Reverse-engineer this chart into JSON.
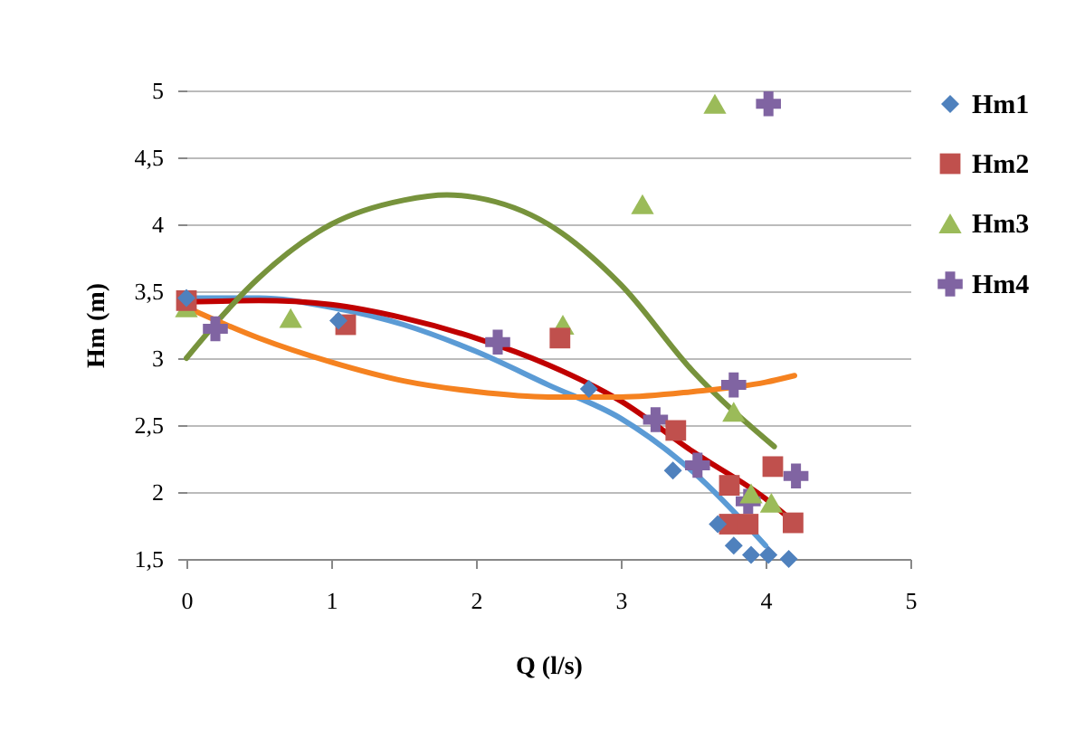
{
  "chart_data": {
    "type": "scatter",
    "xlabel": "Q (l/s)",
    "ylabel": "Hm (m)",
    "xlim": [
      0,
      5
    ],
    "xticks": [
      0,
      1,
      2,
      3,
      4,
      5
    ],
    "ylim": [
      1.5,
      5
    ],
    "yticks": [
      {
        "value": 1.5,
        "label": "1,5"
      },
      2,
      {
        "value": 2.5,
        "label": "2,5"
      },
      3,
      {
        "value": 3.5,
        "label": "3,5"
      },
      4,
      {
        "value": 4.5,
        "label": "4,5"
      },
      5
    ],
    "grid": "y",
    "legend": "right",
    "series": [
      {
        "name": "Hm1",
        "color": "#4f81bd",
        "marker": "diamond",
        "x": [
          0,
          1.05,
          2.78,
          3.36,
          3.67,
          3.78,
          3.9,
          4.02,
          4.16
        ],
        "values": [
          3.45,
          3.28,
          2.77,
          2.16,
          1.76,
          1.6,
          1.53,
          1.53,
          1.5
        ]
      },
      {
        "name": "Hm2",
        "color": "#c0504d",
        "marker": "square",
        "x": [
          0,
          1.1,
          2.58,
          3.38,
          3.75,
          3.75,
          3.88,
          4.05,
          4.19
        ],
        "values": [
          3.43,
          3.25,
          3.15,
          2.46,
          2.05,
          1.76,
          1.76,
          2.19,
          1.77
        ]
      },
      {
        "name": "Hm3",
        "color": "#9bbb59",
        "marker": "triangle",
        "x": [
          0,
          0.72,
          2.6,
          3.15,
          3.65,
          3.78,
          3.9,
          4.04
        ],
        "values": [
          3.38,
          3.3,
          3.25,
          4.15,
          4.9,
          2.6,
          1.99,
          1.92
        ]
      },
      {
        "name": "Hm4",
        "color": "#8064a2",
        "marker": "cross",
        "x": [
          0.2,
          2.15,
          3.24,
          3.53,
          3.78,
          3.88,
          4.02,
          4.21
        ],
        "values": [
          3.22,
          3.12,
          2.54,
          2.2,
          2.8,
          1.93,
          4.9,
          2.12
        ]
      },
      {
        "type": "line",
        "color": "#5b9bd5",
        "marker": "none",
        "x": [
          0,
          0.5,
          1,
          1.5,
          2,
          2.5,
          3,
          3.5,
          4
        ],
        "values": [
          3.45,
          3.45,
          3.38,
          3.25,
          3.05,
          2.8,
          2.55,
          2.15,
          1.6
        ]
      },
      {
        "type": "line",
        "color": "#c00000",
        "marker": "none",
        "x": [
          0,
          0.5,
          1,
          1.5,
          2,
          2.5,
          3,
          3.5,
          4,
          4.2
        ],
        "values": [
          3.42,
          3.43,
          3.4,
          3.3,
          3.15,
          2.95,
          2.68,
          2.3,
          1.95,
          1.77
        ]
      },
      {
        "type": "line",
        "color": "#77933c",
        "marker": "none",
        "x": [
          0,
          0.5,
          1,
          1.5,
          1.8,
          2,
          2.5,
          3,
          3.5,
          4.06
        ],
        "values": [
          3.0,
          3.6,
          4.0,
          4.18,
          4.22,
          4.2,
          4.0,
          3.55,
          2.9,
          2.34
        ]
      },
      {
        "type": "line",
        "color": "#f58220",
        "marker": "none",
        "x": [
          0,
          0.5,
          1,
          1.5,
          2,
          2.5,
          3,
          3.5,
          4,
          4.2
        ],
        "values": [
          3.38,
          3.15,
          2.97,
          2.83,
          2.75,
          2.71,
          2.71,
          2.75,
          2.82,
          2.87
        ]
      }
    ]
  }
}
